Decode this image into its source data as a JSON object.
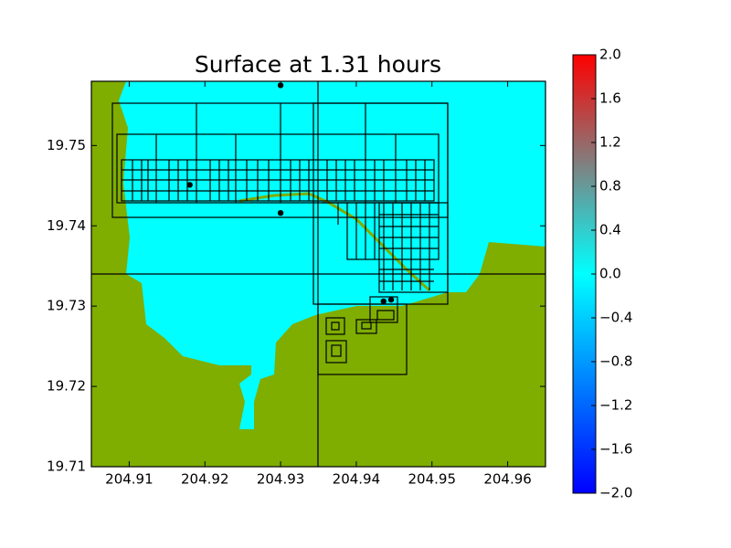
{
  "chart_data": {
    "type": "map",
    "title": "Surface at 1.31 hours",
    "xlim": [
      204.905,
      204.965
    ],
    "ylim": [
      19.71,
      19.758
    ],
    "xticks": [
      204.91,
      204.92,
      204.93,
      204.94,
      204.95,
      204.96
    ],
    "yticks": [
      19.71,
      19.72,
      19.73,
      19.74,
      19.75
    ],
    "water_color": "#00ffff",
    "land_color": "#7fad00",
    "point_color": "#000000",
    "points": {
      "x": [
        204.93,
        204.918,
        204.93,
        204.9436,
        204.9446
      ],
      "y": [
        19.7575,
        19.7451,
        19.7416,
        19.7306,
        19.7308
      ]
    },
    "colorbar": {
      "clim": [
        -2.0,
        2.0
      ],
      "colors": [
        "#0000ff",
        "#0080ff",
        "#00ffff",
        "#808080",
        "#ff0000"
      ],
      "ticks": [
        {
          "value": -2.0,
          "label": "−2.0"
        },
        {
          "value": -1.6,
          "label": "−1.6"
        },
        {
          "value": -1.2,
          "label": "−1.2"
        },
        {
          "value": -0.8,
          "label": "−0.8"
        },
        {
          "value": -0.4,
          "label": "−0.4"
        },
        {
          "value": 0.0,
          "label": "0.0"
        },
        0.4,
        0.8,
        1.2,
        1.6,
        {
          "value": 2.0,
          "label": "2.0"
        }
      ]
    }
  }
}
